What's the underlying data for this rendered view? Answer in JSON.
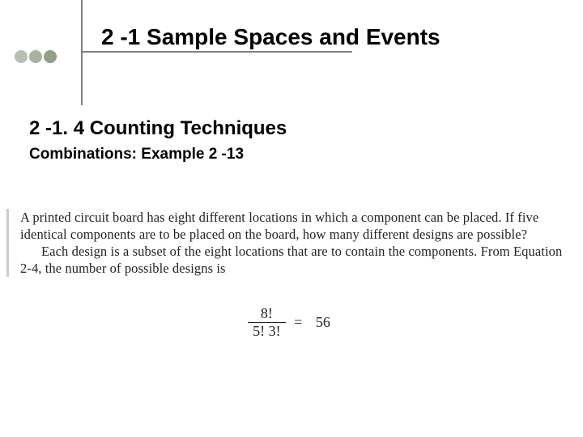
{
  "colors": {
    "dot1": "#b8c0b0",
    "dot2": "#a8b29c",
    "dot3": "#939f85",
    "rule": "#808080",
    "body_rule": "#cfcac4",
    "text": "#000000",
    "body_text": "#222222",
    "background": "#ffffff"
  },
  "title": "2 -1 Sample Spaces and Events",
  "section_heading": "2 -1. 4 Counting Techniques",
  "subheading": "Combinations: Example 2 -13",
  "body": {
    "p1": "A printed circuit board has eight different locations in which a component can be placed. If five identical components are to be placed on the board, how many different designs are possible?",
    "p2a": "Each design is a subset of the eight locations that are to contain the components. From Equation",
    "p2b": "2-4, the number of possible designs is"
  },
  "formula": {
    "numerator": "8!",
    "denominator": "5! 3!",
    "equals": "=",
    "result": "56"
  }
}
